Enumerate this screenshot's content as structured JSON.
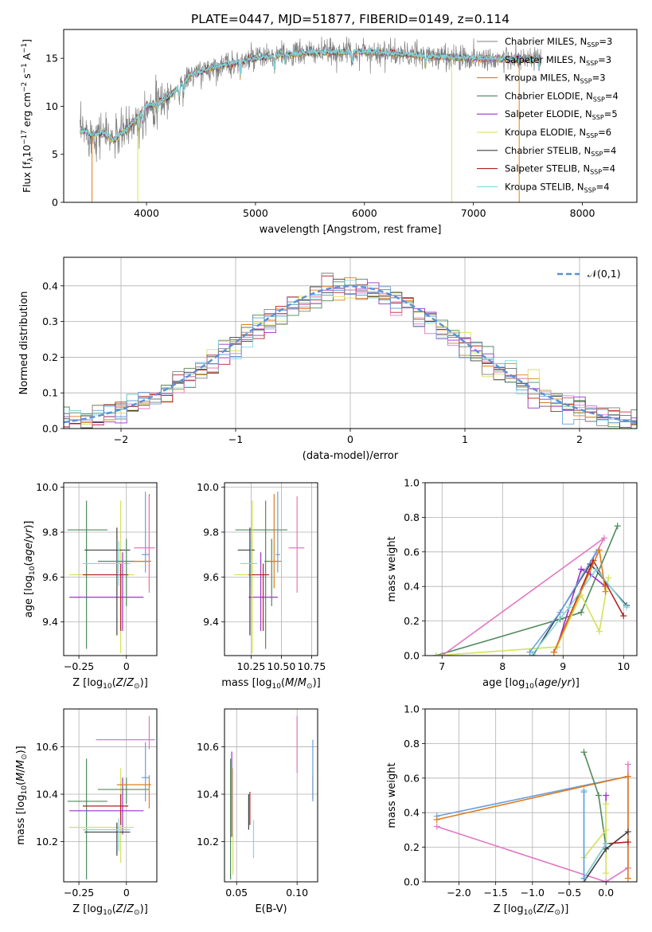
{
  "figure": {
    "title": "PLATE=0447, MJD=51877, FIBERID=0149, z=0.114"
  },
  "colors": {
    "grey": "#808080",
    "orange": "#e07b1a",
    "chabrier_elodie": "#4f8a5b",
    "purple": "#9b30c8",
    "yellow": "#d4e157",
    "dark": "#404040",
    "red": "#b22222",
    "cyan": "#7fd8e0",
    "pink": "#e377c2",
    "blue": "#6a9fe0",
    "normal": "#5b8fd6",
    "grid": "#b0b0b0"
  },
  "legend_models": [
    {
      "label": "Chabrier MILES, N_SSP=3",
      "color": "grey"
    },
    {
      "label": "Salpeter MILES, N_SSP=3",
      "color": "pink"
    },
    {
      "label": "Kroupa MILES, N_SSP=3",
      "color": "orange"
    },
    {
      "label": "Chabrier ELODIE, N_SSP=4",
      "color": "chabrier_elodie"
    },
    {
      "label": "Salpeter ELODIE, N_SSP=5",
      "color": "purple"
    },
    {
      "label": "Kroupa ELODIE, N_SSP=6",
      "color": "yellow"
    },
    {
      "label": "Chabrier STELIB, N_SSP=4",
      "color": "dark"
    },
    {
      "label": "Salpeter STELIB, N_SSP=4",
      "color": "red"
    },
    {
      "label": "Kroupa STELIB, N_SSP=4",
      "color": "cyan"
    }
  ],
  "chart_data": [
    {
      "id": "spectrum",
      "type": "line",
      "xlabel": "wavelength [Angstrom, rest frame]",
      "ylabel": "Flux [f_λ10^-17 erg cm^-2 s^-1 A^-1]",
      "xlim": [
        3240,
        8500
      ],
      "ylim": [
        0,
        18
      ],
      "xticks": [
        4000,
        5000,
        6000,
        7000,
        8000
      ],
      "yticks": [
        0,
        5,
        10,
        15
      ],
      "continuum": {
        "x": [
          3430,
          3500,
          3600,
          3700,
          3800,
          3900,
          4000,
          4100,
          4200,
          4300,
          4400,
          4500,
          4600,
          4800,
          5000,
          5200,
          5500,
          6000,
          6500,
          7000,
          7400
        ],
        "y": [
          7.4,
          7.0,
          7.3,
          6.5,
          7.4,
          8.6,
          10.1,
          10.3,
          11.0,
          12.0,
          13.2,
          13.6,
          14.0,
          14.5,
          15.0,
          15.3,
          15.6,
          15.7,
          15.3,
          15.0,
          14.9
        ]
      },
      "observed_extent": [
        3390,
        7620
      ],
      "model_drop_lines": [
        {
          "x": 3500,
          "color": "orange"
        },
        {
          "x": 3920,
          "color": "yellow"
        },
        {
          "x": 6800,
          "color": "yellow"
        },
        {
          "x": 7420,
          "color": "orange"
        }
      ],
      "grid": false,
      "legend": "upper-right"
    },
    {
      "id": "residuals",
      "type": "histogram",
      "xlabel": "(data-model)/error",
      "ylabel": "Normed distribution",
      "xlim": [
        -2.5,
        2.5
      ],
      "ylim": [
        0,
        0.48
      ],
      "xticks": [
        -2,
        -1,
        0,
        1,
        2
      ],
      "yticks": [
        0.0,
        0.1,
        0.2,
        0.3,
        0.4
      ],
      "bin_width": 0.1,
      "normal_curve_label": "𝒩(0,1)",
      "grid": true,
      "legend": "upper-right"
    },
    {
      "id": "age_vs_Z",
      "type": "errorbar",
      "xlabel": "Z [log10(Z/Z⊙)]",
      "ylabel": "age  [log10(age/yr)]",
      "xlim": [
        -0.33,
        0.16
      ],
      "ylim": [
        9.25,
        10.02
      ],
      "xticks": [
        -0.25,
        0.0
      ],
      "yticks": [
        9.4,
        9.6,
        9.8,
        10.0
      ],
      "points": [
        {
          "color": "chabrier_elodie",
          "x": -0.21,
          "xerr": [
            0.1,
            0.11
          ],
          "y": 9.81,
          "yerr": [
            0.53,
            0.13
          ]
        },
        {
          "color": "purple",
          "x": -0.02,
          "xerr": [
            0.28,
            0.11
          ],
          "y": 9.51,
          "yerr": [
            0.15,
            0.2
          ]
        },
        {
          "color": "yellow",
          "x": -0.03,
          "xerr": [
            0.27,
            0.07
          ],
          "y": 9.61,
          "yerr": [
            0.35,
            0.33
          ]
        },
        {
          "color": "dark",
          "x": -0.05,
          "xerr": [
            0.17,
            0.07
          ],
          "y": 9.72,
          "yerr": [
            0.38,
            0.1
          ]
        },
        {
          "color": "red",
          "x": -0.03,
          "xerr": [
            0.2,
            0.04
          ],
          "y": 9.61,
          "yerr": [
            0.25,
            0.05
          ]
        },
        {
          "color": "cyan",
          "x": -0.04,
          "xerr": [
            0.19,
            0.06
          ],
          "y": 9.66,
          "yerr": [
            0.1,
            0.1
          ]
        },
        {
          "color": "chabrier_elodie",
          "x": 0.0,
          "xerr": [
            0.15,
            0.12
          ],
          "y": 9.67,
          "yerr": [
            0.2,
            0.1
          ]
        },
        {
          "color": "orange",
          "x": 0.12,
          "xerr": [
            0.08,
            0.01
          ],
          "y": 9.67,
          "yerr": [
            0.12,
            0.3
          ]
        },
        {
          "color": "blue",
          "x": 0.1,
          "xerr": [
            0.02,
            0.02
          ],
          "y": 9.7,
          "yerr": [
            0.08,
            0.28
          ]
        },
        {
          "color": "pink",
          "x": 0.12,
          "xerr": [
            0.08,
            0.03
          ],
          "y": 9.73,
          "yerr": [
            0.2,
            0.23
          ]
        }
      ],
      "grid": true
    },
    {
      "id": "age_vs_mass",
      "type": "errorbar",
      "xlabel": "mass [log10(M/M⊙)]",
      "ylabel": "",
      "xlim": [
        10.03,
        10.8
      ],
      "ylim": [
        9.25,
        10.02
      ],
      "xticks": [
        10.25,
        10.5,
        10.75
      ],
      "xtick_labels": [
        "10.25",
        "10.50",
        "10.75"
      ],
      "yticks": [
        9.4,
        9.6,
        9.8,
        10.0
      ],
      "points": [
        {
          "color": "chabrier_elodie",
          "x": 10.37,
          "xerr": [
            0.25,
            0.18
          ],
          "y": 9.81,
          "yerr": [
            0.53,
            0.13
          ]
        },
        {
          "color": "purple",
          "x": 10.33,
          "xerr": [
            0.1,
            0.14
          ],
          "y": 9.51,
          "yerr": [
            0.15,
            0.2
          ]
        },
        {
          "color": "yellow",
          "x": 10.26,
          "xerr": [
            0.15,
            0.12
          ],
          "y": 9.61,
          "yerr": [
            0.35,
            0.33
          ]
        },
        {
          "color": "dark",
          "x": 10.24,
          "xerr": [
            0.1,
            0.04
          ],
          "y": 9.72,
          "yerr": [
            0.38,
            0.1
          ]
        },
        {
          "color": "red",
          "x": 10.35,
          "xerr": [
            0.12,
            0.05
          ],
          "y": 9.61,
          "yerr": [
            0.25,
            0.05
          ]
        },
        {
          "color": "cyan",
          "x": 10.25,
          "xerr": [
            0.09,
            0.05
          ],
          "y": 9.66,
          "yerr": [
            0.1,
            0.1
          ]
        },
        {
          "color": "chabrier_elodie",
          "x": 10.42,
          "xerr": [
            0.06,
            0.05
          ],
          "y": 9.67,
          "yerr": [
            0.2,
            0.1
          ]
        },
        {
          "color": "orange",
          "x": 10.44,
          "xerr": [
            0.04,
            0.06
          ],
          "y": 9.67,
          "yerr": [
            0.12,
            0.3
          ]
        },
        {
          "color": "blue",
          "x": 10.47,
          "xerr": [
            0.02,
            0.02
          ],
          "y": 9.7,
          "yerr": [
            0.08,
            0.28
          ]
        },
        {
          "color": "pink",
          "x": 10.63,
          "xerr": [
            0.07,
            0.06
          ],
          "y": 9.73,
          "yerr": [
            0.2,
            0.23
          ]
        }
      ],
      "grid": true
    },
    {
      "id": "mass_vs_Z",
      "type": "errorbar",
      "xlabel": "Z [log10(Z/Z⊙)]",
      "ylabel": "mass [log10(M/M⊙)]",
      "xlim": [
        -0.33,
        0.16
      ],
      "ylim": [
        10.03,
        10.76
      ],
      "xticks": [
        -0.25,
        0.0
      ],
      "yticks": [
        10.2,
        10.4,
        10.6
      ],
      "points": [
        {
          "color": "chabrier_elodie",
          "x": -0.21,
          "xerr": [
            0.1,
            0.11
          ],
          "y": 10.37,
          "yerr": [
            0.33,
            0.18
          ]
        },
        {
          "color": "purple",
          "x": -0.02,
          "xerr": [
            0.28,
            0.11
          ],
          "y": 10.33,
          "yerr": [
            0.1,
            0.14
          ]
        },
        {
          "color": "yellow",
          "x": -0.03,
          "xerr": [
            0.27,
            0.07
          ],
          "y": 10.26,
          "yerr": [
            0.15,
            0.25
          ]
        },
        {
          "color": "dark",
          "x": -0.05,
          "xerr": [
            0.17,
            0.07
          ],
          "y": 10.24,
          "yerr": [
            0.1,
            0.04
          ]
        },
        {
          "color": "red",
          "x": -0.03,
          "xerr": [
            0.2,
            0.04
          ],
          "y": 10.35,
          "yerr": [
            0.08,
            0.05
          ]
        },
        {
          "color": "cyan",
          "x": -0.04,
          "xerr": [
            0.19,
            0.06
          ],
          "y": 10.25,
          "yerr": [
            0.09,
            0.05
          ]
        },
        {
          "color": "chabrier_elodie",
          "x": 0.0,
          "xerr": [
            0.15,
            0.12
          ],
          "y": 10.42,
          "yerr": [
            0.06,
            0.05
          ]
        },
        {
          "color": "orange",
          "x": 0.12,
          "xerr": [
            0.17,
            0.01
          ],
          "y": 10.44,
          "yerr": [
            0.1,
            0.04
          ]
        },
        {
          "color": "blue",
          "x": 0.1,
          "xerr": [
            0.02,
            0.02
          ],
          "y": 10.47,
          "yerr": [
            0.1,
            0.15
          ]
        },
        {
          "color": "pink",
          "x": 0.12,
          "xerr": [
            0.28,
            0.03
          ],
          "y": 10.63,
          "yerr": [
            0.04,
            0.1
          ]
        }
      ],
      "grid": true
    },
    {
      "id": "mass_vs_EBV",
      "type": "errorbar",
      "xlabel": "E(B-V)",
      "ylabel": "",
      "xlim": [
        0.04,
        0.117
      ],
      "ylim": [
        10.03,
        10.76
      ],
      "xticks": [
        0.05,
        0.1
      ],
      "xtick_labels": [
        "0.05",
        "0.10"
      ],
      "yticks": [
        10.2,
        10.4,
        10.6
      ],
      "points": [
        {
          "color": "chabrier_elodie",
          "x": 0.045,
          "y": 10.37,
          "yerr": [
            0.33,
            0.18
          ]
        },
        {
          "color": "purple",
          "x": 0.046,
          "y": 10.52,
          "yerr": [
            0.3,
            0.06
          ]
        },
        {
          "color": "yellow",
          "x": 0.047,
          "y": 10.26,
          "yerr": [
            0.2,
            0.25
          ]
        },
        {
          "color": "dark",
          "x": 0.06,
          "y": 10.3,
          "yerr": [
            0.05,
            0.1
          ]
        },
        {
          "color": "red",
          "x": 0.061,
          "y": 10.33,
          "yerr": [
            0.06,
            0.08
          ]
        },
        {
          "color": "cyan",
          "x": 0.064,
          "y": 10.21,
          "yerr": [
            0.08,
            0.08
          ]
        },
        {
          "color": "pink",
          "x": 0.1,
          "y": 10.6,
          "yerr": [
            0.11,
            0.13
          ]
        },
        {
          "color": "orange",
          "x": 0.113,
          "y": 10.44,
          "yerr": [
            0.06,
            0.04
          ]
        },
        {
          "color": "blue",
          "x": 0.113,
          "y": 10.5,
          "yerr": [
            0.13,
            0.13
          ]
        }
      ],
      "grid": true
    },
    {
      "id": "weight_vs_age",
      "type": "line",
      "xlabel": "age  [log10(age/yr)]",
      "ylabel": "mass weight",
      "xlim": [
        6.72,
        10.22
      ],
      "ylim": [
        0,
        1
      ],
      "xticks": [
        7,
        8,
        9,
        10
      ],
      "yticks": [
        0.0,
        0.2,
        0.4,
        0.6,
        0.8,
        1.0
      ],
      "series": [
        {
          "color": "chabrier_elodie",
          "x": [
            6.9,
            8.95,
            9.3,
            9.9
          ],
          "y": [
            0.0,
            0.21,
            0.25,
            0.75
          ]
        },
        {
          "color": "pink",
          "x": [
            7.0,
            9.68,
            9.4
          ],
          "y": [
            0.0,
            0.68,
            0.5
          ]
        },
        {
          "color": "purple",
          "x": [
            8.9,
            9.3,
            9.45,
            9.7
          ],
          "y": [
            0.05,
            0.5,
            0.47,
            0.4
          ]
        },
        {
          "color": "yellow",
          "x": [
            6.9,
            8.9,
            9.3,
            9.6,
            9.75
          ],
          "y": [
            0.0,
            0.05,
            0.35,
            0.14,
            0.45
          ]
        },
        {
          "color": "dark",
          "x": [
            8.5,
            9.45,
            10.05
          ],
          "y": [
            0.0,
            0.53,
            0.29
          ]
        },
        {
          "color": "red",
          "x": [
            8.85,
            9.5,
            10.0
          ],
          "y": [
            0.02,
            0.55,
            0.23
          ]
        },
        {
          "color": "cyan",
          "x": [
            8.5,
            9.1,
            9.55,
            10.05
          ],
          "y": [
            0.01,
            0.28,
            0.5,
            0.28
          ]
        },
        {
          "color": "blue",
          "x": [
            8.45,
            8.95,
            9.55
          ],
          "y": [
            0.02,
            0.25,
            0.6
          ]
        },
        {
          "color": "orange",
          "x": [
            8.85,
            9.6,
            9.7
          ],
          "y": [
            0.02,
            0.61,
            0.37
          ]
        }
      ],
      "grid": true
    },
    {
      "id": "weight_vs_Z",
      "type": "line",
      "xlabel": "Z [log10(Z/Z⊙)]",
      "ylabel": "mass weight",
      "xlim": [
        -2.46,
        0.42
      ],
      "ylim": [
        0,
        1
      ],
      "xticks": [
        -2.0,
        -1.5,
        -1.0,
        -0.5,
        0.0
      ],
      "xtick_labels": [
        "−2.0",
        "−1.5",
        "−1.0",
        "−0.5",
        "0.0"
      ],
      "yticks": [
        0.0,
        0.2,
        0.4,
        0.6,
        0.8,
        1.0
      ],
      "series": [
        {
          "color": "pink",
          "x": [
            -2.3,
            0.0,
            0.3,
            0.3
          ],
          "y": [
            0.32,
            0.0,
            0.08,
            0.68
          ]
        },
        {
          "color": "blue",
          "x": [
            -2.3,
            0.3
          ],
          "y": [
            0.38,
            0.61
          ]
        },
        {
          "color": "orange",
          "x": [
            -2.3,
            0.3,
            0.3
          ],
          "y": [
            0.36,
            0.61,
            0.02
          ]
        },
        {
          "color": "chabrier_elodie",
          "x": [
            -0.3,
            -0.1,
            0.0
          ],
          "y": [
            0.75,
            0.5,
            0.2
          ]
        },
        {
          "color": "purple",
          "x": [
            0.0,
            0.0
          ],
          "y": [
            0.5,
            0.2
          ]
        },
        {
          "color": "yellow",
          "x": [
            -0.3,
            0.0,
            0.0,
            0.0
          ],
          "y": [
            0.14,
            0.3,
            0.45,
            0.05
          ]
        },
        {
          "color": "dark",
          "x": [
            -0.3,
            0.0,
            0.3
          ],
          "y": [
            0.0,
            0.19,
            0.29
          ]
        },
        {
          "color": "red",
          "x": [
            -0.3,
            0.0,
            0.3
          ],
          "y": [
            0.02,
            0.22,
            0.23
          ]
        },
        {
          "color": "cyan",
          "x": [
            -0.3,
            -0.3,
            0.0
          ],
          "y": [
            0.53,
            0.02,
            0.22
          ]
        },
        {
          "color": "blue",
          "x": [
            -0.3,
            -0.3
          ],
          "y": [
            0.52,
            0.02
          ]
        }
      ],
      "grid": true
    }
  ]
}
